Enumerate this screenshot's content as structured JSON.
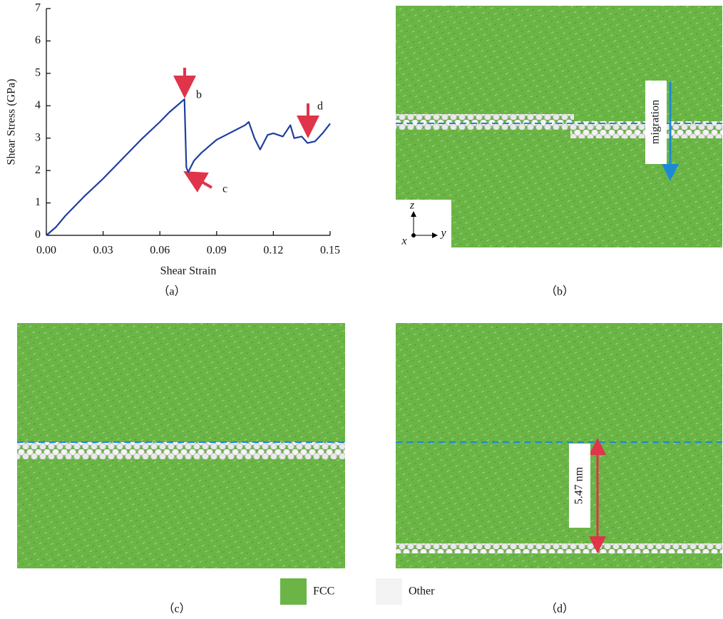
{
  "chart_data": {
    "type": "line",
    "x_label": "Shear Strain",
    "y_label": "Shear Stress (GPa)",
    "x": [
      0,
      0.005,
      0.01,
      0.02,
      0.03,
      0.04,
      0.05,
      0.06,
      0.065,
      0.07,
      0.072,
      0.073,
      0.074,
      0.075,
      0.078,
      0.082,
      0.086,
      0.09,
      0.095,
      0.1,
      0.105,
      0.107,
      0.11,
      0.113,
      0.117,
      0.12,
      0.125,
      0.129,
      0.131,
      0.135,
      0.138,
      0.142,
      0.146,
      0.15
    ],
    "series": [
      {
        "color": "#1f3f9f",
        "values": [
          0,
          0.25,
          0.6,
          1.2,
          1.75,
          2.35,
          2.95,
          3.5,
          3.8,
          4.05,
          4.15,
          4.2,
          2.1,
          1.95,
          2.3,
          2.55,
          2.75,
          2.95,
          3.1,
          3.25,
          3.4,
          3.5,
          3.0,
          2.65,
          3.1,
          3.15,
          3.05,
          3.4,
          3.0,
          3.05,
          2.85,
          2.9,
          3.15,
          3.45
        ]
      }
    ],
    "xlim": [
      0,
      0.15
    ],
    "xticks": [
      {
        "value": 0,
        "label": "0.00"
      },
      {
        "value": 0.03,
        "label": "0.03"
      },
      {
        "value": 0.06,
        "label": "0.06"
      },
      {
        "value": 0.09,
        "label": "0.09"
      },
      {
        "value": 0.12,
        "label": "0.12"
      },
      {
        "value": 0.15,
        "label": "0.15"
      }
    ],
    "ylim": [
      0,
      7
    ],
    "yticks": [
      0,
      1,
      2,
      3,
      4,
      5,
      6,
      7
    ],
    "annotations": [
      "b",
      "c",
      "d"
    ],
    "caption": "（a）"
  },
  "panels": [
    {
      "caption": "（b）",
      "annotation": "migration",
      "axes": [
        "z",
        "x",
        "y"
      ]
    },
    {
      "caption": "（c）"
    },
    {
      "caption": "（d）",
      "annotation": "5.47 nm"
    }
  ],
  "legend": [
    {
      "label": "FCC",
      "color": "#6ab545"
    },
    {
      "label": "Other",
      "color": "#f3f3f3"
    }
  ]
}
